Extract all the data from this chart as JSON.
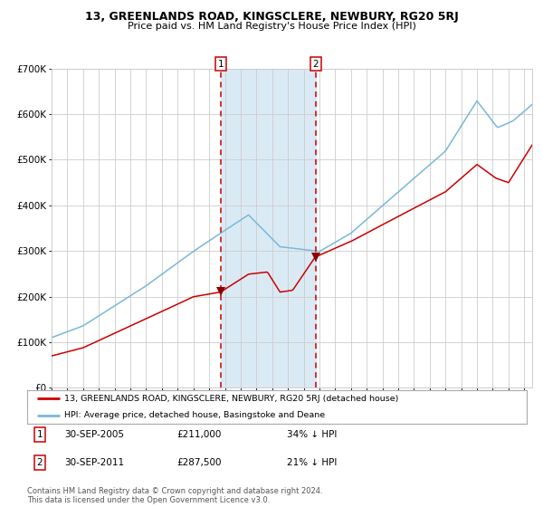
{
  "title": "13, GREENLANDS ROAD, KINGSCLERE, NEWBURY, RG20 5RJ",
  "subtitle": "Price paid vs. HM Land Registry's House Price Index (HPI)",
  "sale1_date": 2005.75,
  "sale1_price": 211000,
  "sale2_date": 2011.75,
  "sale2_price": 287500,
  "hpi_color": "#7ab8d9",
  "price_color": "#cc0000",
  "marker_color": "#8b0000",
  "shade_color": "#daeaf5",
  "vline_color": "#cc0000",
  "grid_color": "#cccccc",
  "bg_color": "#ffffff",
  "legend1_label": "13, GREENLANDS ROAD, KINGSCLERE, NEWBURY, RG20 5RJ (detached house)",
  "legend2_label": "HPI: Average price, detached house, Basingstoke and Deane",
  "note1_date": "30-SEP-2005",
  "note1_price": "£211,000",
  "note1_hpi": "34% ↓ HPI",
  "note2_date": "30-SEP-2011",
  "note2_price": "£287,500",
  "note2_hpi": "21% ↓ HPI",
  "copyright": "Contains HM Land Registry data © Crown copyright and database right 2024.\nThis data is licensed under the Open Government Licence v3.0.",
  "ylim": [
    0,
    700000
  ],
  "xlim_start": 1995.0,
  "xlim_end": 2025.5
}
